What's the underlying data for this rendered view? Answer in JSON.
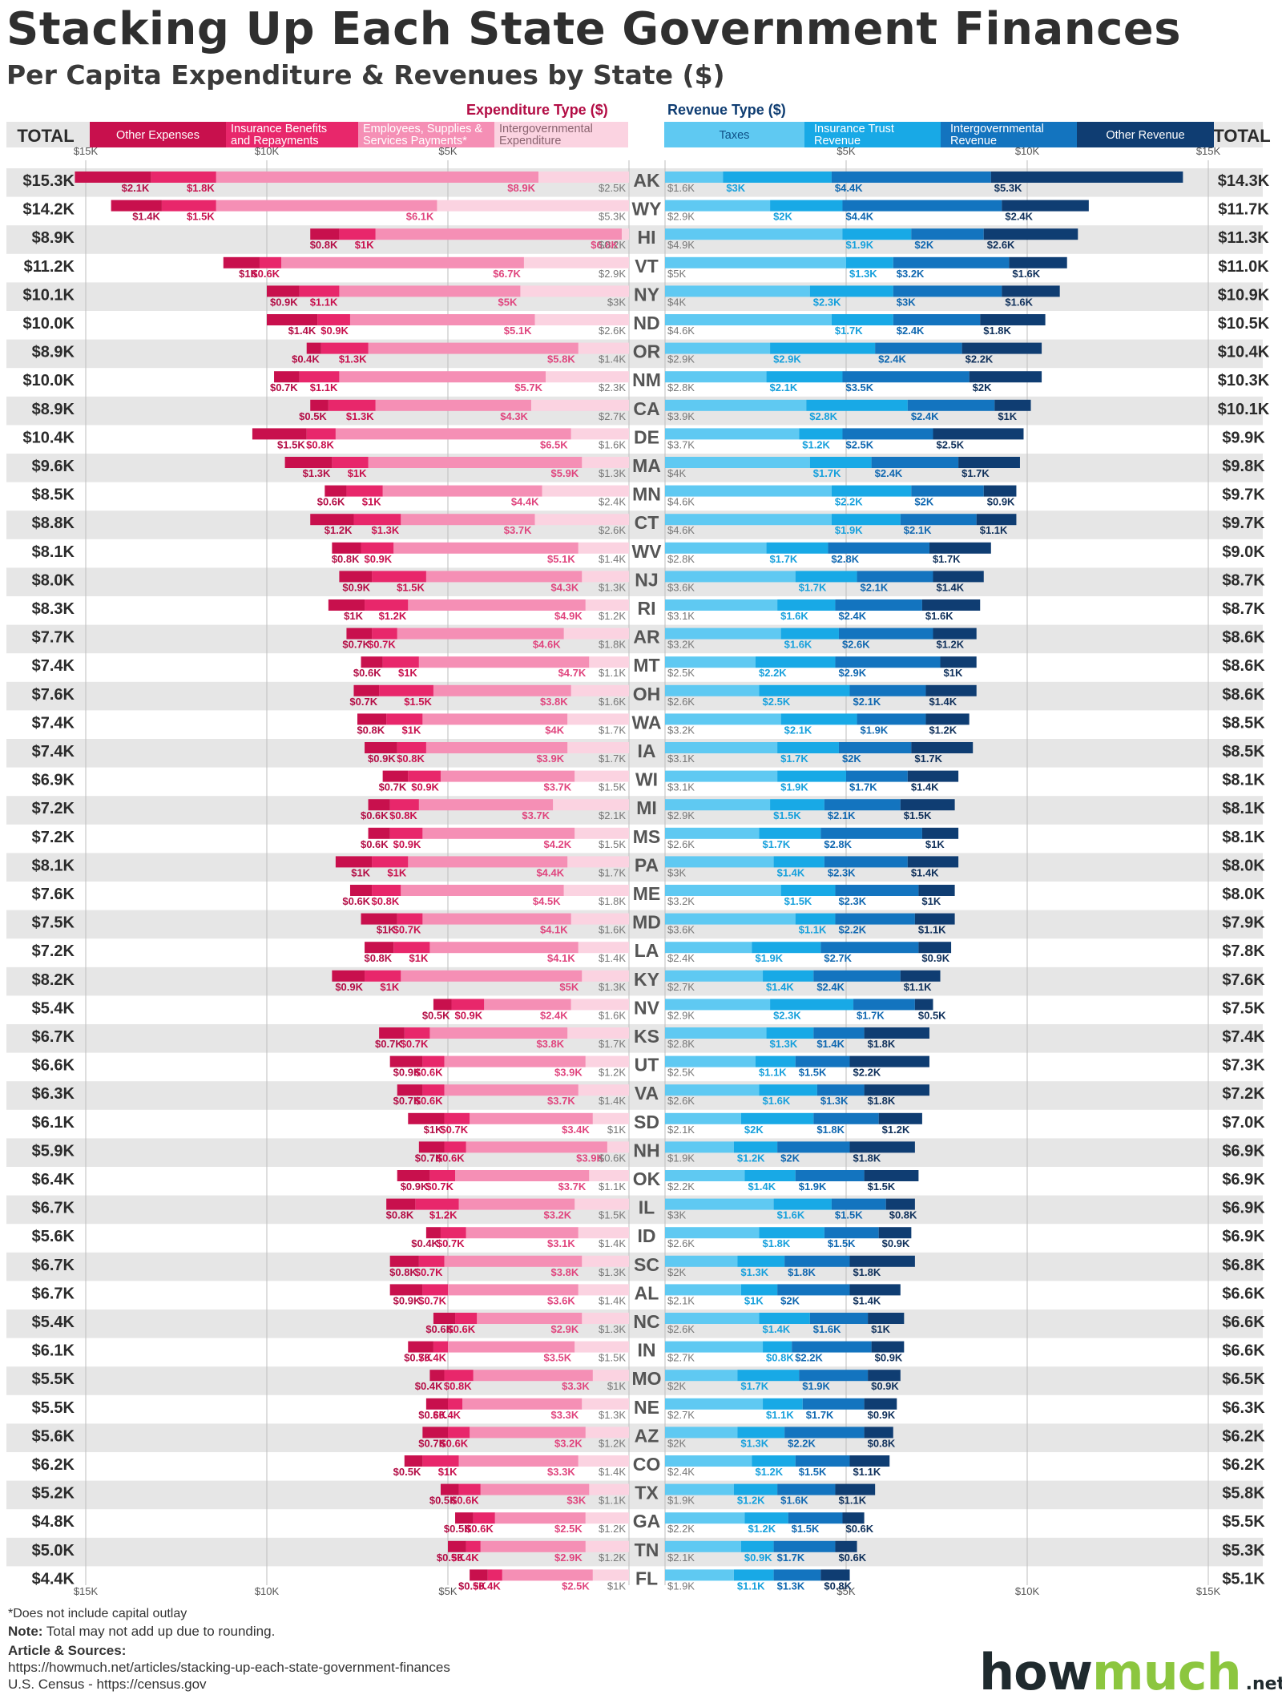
{
  "header": {
    "title": "Stacking Up Each State Government Finances",
    "subtitle": "Per Capita Expenditure & Revenues by State ($)"
  },
  "legend": {
    "total_label": "TOTAL",
    "expenditure_heading": "Expenditure Type ($)",
    "revenue_heading": "Revenue Type ($)",
    "expenditure_types": [
      {
        "name": "Other Expenses",
        "color": "#c8104d"
      },
      {
        "name": "Insurance Benefits and Repayments",
        "color": "#e8276b"
      },
      {
        "name": "Employees, Supplies & Services Payments*",
        "color": "#f58fb5"
      },
      {
        "name": "Intergovernmental Expenditure",
        "color": "#fbd3e1"
      }
    ],
    "revenue_types": [
      {
        "name": "Taxes",
        "color": "#5fc9f2"
      },
      {
        "name": "Insurance Trust Revenue",
        "color": "#18a9e6"
      },
      {
        "name": "Intergovernmental Revenue",
        "color": "#1374bf"
      },
      {
        "name": "Other Revenue",
        "color": "#0f3d72"
      }
    ]
  },
  "axis": {
    "ticks_left": [
      "$15K",
      "$10K",
      "$5K"
    ],
    "ticks_right": [
      "$5K",
      "$10K",
      "$15K"
    ]
  },
  "footer": {
    "note1": "*Does not include capital outlay",
    "note2_bold": "Note:",
    "note2": "Total may not add up due to rounding.",
    "sources_heading": "Article & Sources:",
    "source1": "https://howmuch.net/articles/stacking-up-each-state-government-finances",
    "source2": "U.S. Census - https://census.gov"
  },
  "logo": {
    "main": "how",
    "accent": "much",
    "tld": ".net"
  },
  "chart_data": {
    "type": "bar",
    "title": "Stacking Up Each State Government Finances",
    "subtitle": "Per Capita Expenditure & Revenues by State ($)",
    "unit": "USD per capita (thousands)",
    "xlim": [
      0,
      15
    ],
    "expenditure_series": [
      "Other Expenses",
      "Insurance Benefits and Repayments",
      "Employees, Supplies & Services Payments*",
      "Intergovernmental Expenditure"
    ],
    "revenue_series": [
      "Taxes",
      "Insurance Trust Revenue",
      "Intergovernmental Revenue",
      "Other Revenue"
    ],
    "states": [
      {
        "state": "AK",
        "exp_total": "$15.3K",
        "exp": [
          "$2.1K",
          "$1.8K",
          "$8.9K",
          "$2.5K"
        ],
        "rev_total": "$14.3K",
        "rev": [
          "$1.6K",
          "$3K",
          "$4.4K",
          "$5.3K"
        ]
      },
      {
        "state": "WY",
        "exp_total": "$14.2K",
        "exp": [
          "$1.4K",
          "$1.5K",
          "$6.1K",
          "$5.3K"
        ],
        "rev_total": "$11.7K",
        "rev": [
          "$2.9K",
          "$2K",
          "$4.4K",
          "$2.4K"
        ]
      },
      {
        "state": "HI",
        "exp_total": "$8.9K",
        "exp": [
          "$0.8K",
          "$1K",
          "$6.8K",
          "$0.2K"
        ],
        "rev_total": "$11.3K",
        "rev": [
          "$4.9K",
          "$1.9K",
          "$2K",
          "$2.6K"
        ]
      },
      {
        "state": "VT",
        "exp_total": "$11.2K",
        "exp": [
          "$1K",
          "$0.6K",
          "$6.7K",
          "$2.9K"
        ],
        "rev_total": "$11.0K",
        "rev": [
          "$5K",
          "$1.3K",
          "$3.2K",
          "$1.6K"
        ]
      },
      {
        "state": "NY",
        "exp_total": "$10.1K",
        "exp": [
          "$0.9K",
          "$1.1K",
          "$5K",
          "$3K"
        ],
        "rev_total": "$10.9K",
        "rev": [
          "$4K",
          "$2.3K",
          "$3K",
          "$1.6K"
        ]
      },
      {
        "state": "ND",
        "exp_total": "$10.0K",
        "exp": [
          "$1.4K",
          "$0.9K",
          "$5.1K",
          "$2.6K"
        ],
        "rev_total": "$10.5K",
        "rev": [
          "$4.6K",
          "$1.7K",
          "$2.4K",
          "$1.8K"
        ]
      },
      {
        "state": "OR",
        "exp_total": "$8.9K",
        "exp": [
          "$0.4K",
          "$1.3K",
          "$5.8K",
          "$1.4K"
        ],
        "rev_total": "$10.4K",
        "rev": [
          "$2.9K",
          "$2.9K",
          "$2.4K",
          "$2.2K"
        ]
      },
      {
        "state": "NM",
        "exp_total": "$10.0K",
        "exp": [
          "$0.7K",
          "$1.1K",
          "$5.7K",
          "$2.3K"
        ],
        "rev_total": "$10.3K",
        "rev": [
          "$2.8K",
          "$2.1K",
          "$3.5K",
          "$2K"
        ]
      },
      {
        "state": "CA",
        "exp_total": "$8.9K",
        "exp": [
          "$0.5K",
          "$1.3K",
          "$4.3K",
          "$2.7K"
        ],
        "rev_total": "$10.1K",
        "rev": [
          "$3.9K",
          "$2.8K",
          "$2.4K",
          "$1K"
        ]
      },
      {
        "state": "DE",
        "exp_total": "$10.4K",
        "exp": [
          "$1.5K",
          "$0.8K",
          "$6.5K",
          "$1.6K"
        ],
        "rev_total": "$9.9K",
        "rev": [
          "$3.7K",
          "$1.2K",
          "$2.5K",
          "$2.5K"
        ]
      },
      {
        "state": "MA",
        "exp_total": "$9.6K",
        "exp": [
          "$1.3K",
          "$1K",
          "$5.9K",
          "$1.3K"
        ],
        "rev_total": "$9.8K",
        "rev": [
          "$4K",
          "$1.7K",
          "$2.4K",
          "$1.7K"
        ]
      },
      {
        "state": "MN",
        "exp_total": "$8.5K",
        "exp": [
          "$0.6K",
          "$1K",
          "$4.4K",
          "$2.4K"
        ],
        "rev_total": "$9.7K",
        "rev": [
          "$4.6K",
          "$2.2K",
          "$2K",
          "$0.9K"
        ]
      },
      {
        "state": "CT",
        "exp_total": "$8.8K",
        "exp": [
          "$1.2K",
          "$1.3K",
          "$3.7K",
          "$2.6K"
        ],
        "rev_total": "$9.7K",
        "rev": [
          "$4.6K",
          "$1.9K",
          "$2.1K",
          "$1.1K"
        ]
      },
      {
        "state": "WV",
        "exp_total": "$8.1K",
        "exp": [
          "$0.8K",
          "$0.9K",
          "$5.1K",
          "$1.4K"
        ],
        "rev_total": "$9.0K",
        "rev": [
          "$2.8K",
          "$1.7K",
          "$2.8K",
          "$1.7K"
        ]
      },
      {
        "state": "NJ",
        "exp_total": "$8.0K",
        "exp": [
          "$0.9K",
          "$1.5K",
          "$4.3K",
          "$1.3K"
        ],
        "rev_total": "$8.7K",
        "rev": [
          "$3.6K",
          "$1.7K",
          "$2.1K",
          "$1.4K"
        ]
      },
      {
        "state": "RI",
        "exp_total": "$8.3K",
        "exp": [
          "$1K",
          "$1.2K",
          "$4.9K",
          "$1.2K"
        ],
        "rev_total": "$8.7K",
        "rev": [
          "$3.1K",
          "$1.6K",
          "$2.4K",
          "$1.6K"
        ]
      },
      {
        "state": "AR",
        "exp_total": "$7.7K",
        "exp": [
          "$0.7K",
          "$0.7K",
          "$4.6K",
          "$1.8K"
        ],
        "rev_total": "$8.6K",
        "rev": [
          "$3.2K",
          "$1.6K",
          "$2.6K",
          "$1.2K"
        ]
      },
      {
        "state": "MT",
        "exp_total": "$7.4K",
        "exp": [
          "$0.6K",
          "$1K",
          "$4.7K",
          "$1.1K"
        ],
        "rev_total": "$8.6K",
        "rev": [
          "$2.5K",
          "$2.2K",
          "$2.9K",
          "$1K"
        ]
      },
      {
        "state": "OH",
        "exp_total": "$7.6K",
        "exp": [
          "$0.7K",
          "$1.5K",
          "$3.8K",
          "$1.6K"
        ],
        "rev_total": "$8.6K",
        "rev": [
          "$2.6K",
          "$2.5K",
          "$2.1K",
          "$1.4K"
        ]
      },
      {
        "state": "WA",
        "exp_total": "$7.4K",
        "exp": [
          "$0.8K",
          "$1K",
          "$4K",
          "$1.7K"
        ],
        "rev_total": "$8.5K",
        "rev": [
          "$3.2K",
          "$2.1K",
          "$1.9K",
          "$1.2K"
        ]
      },
      {
        "state": "IA",
        "exp_total": "$7.4K",
        "exp": [
          "$0.9K",
          "$0.8K",
          "$3.9K",
          "$1.7K"
        ],
        "rev_total": "$8.5K",
        "rev": [
          "$3.1K",
          "$1.7K",
          "$2K",
          "$1.7K"
        ]
      },
      {
        "state": "WI",
        "exp_total": "$6.9K",
        "exp": [
          "$0.7K",
          "$0.9K",
          "$3.7K",
          "$1.5K"
        ],
        "rev_total": "$8.1K",
        "rev": [
          "$3.1K",
          "$1.9K",
          "$1.7K",
          "$1.4K"
        ]
      },
      {
        "state": "MI",
        "exp_total": "$7.2K",
        "exp": [
          "$0.6K",
          "$0.8K",
          "$3.7K",
          "$2.1K"
        ],
        "rev_total": "$8.1K",
        "rev": [
          "$2.9K",
          "$1.5K",
          "$2.1K",
          "$1.5K"
        ]
      },
      {
        "state": "MS",
        "exp_total": "$7.2K",
        "exp": [
          "$0.6K",
          "$0.9K",
          "$4.2K",
          "$1.5K"
        ],
        "rev_total": "$8.1K",
        "rev": [
          "$2.6K",
          "$1.7K",
          "$2.8K",
          "$1K"
        ]
      },
      {
        "state": "PA",
        "exp_total": "$8.1K",
        "exp": [
          "$1K",
          "$1K",
          "$4.4K",
          "$1.7K"
        ],
        "rev_total": "$8.0K",
        "rev": [
          "$3K",
          "$1.4K",
          "$2.3K",
          "$1.4K"
        ]
      },
      {
        "state": "ME",
        "exp_total": "$7.6K",
        "exp": [
          "$0.6K",
          "$0.8K",
          "$4.5K",
          "$1.8K"
        ],
        "rev_total": "$8.0K",
        "rev": [
          "$3.2K",
          "$1.5K",
          "$2.3K",
          "$1K"
        ]
      },
      {
        "state": "MD",
        "exp_total": "$7.5K",
        "exp": [
          "$1K",
          "$0.7K",
          "$4.1K",
          "$1.6K"
        ],
        "rev_total": "$7.9K",
        "rev": [
          "$3.6K",
          "$1.1K",
          "$2.2K",
          "$1.1K"
        ]
      },
      {
        "state": "LA",
        "exp_total": "$7.2K",
        "exp": [
          "$0.8K",
          "$1K",
          "$4.1K",
          "$1.4K"
        ],
        "rev_total": "$7.8K",
        "rev": [
          "$2.4K",
          "$1.9K",
          "$2.7K",
          "$0.9K"
        ]
      },
      {
        "state": "KY",
        "exp_total": "$8.2K",
        "exp": [
          "$0.9K",
          "$1K",
          "$5K",
          "$1.3K"
        ],
        "rev_total": "$7.6K",
        "rev": [
          "$2.7K",
          "$1.4K",
          "$2.4K",
          "$1.1K"
        ]
      },
      {
        "state": "NV",
        "exp_total": "$5.4K",
        "exp": [
          "$0.5K",
          "$0.9K",
          "$2.4K",
          "$1.6K"
        ],
        "rev_total": "$7.5K",
        "rev": [
          "$2.9K",
          "$2.3K",
          "$1.7K",
          "$0.5K"
        ]
      },
      {
        "state": "KS",
        "exp_total": "$6.7K",
        "exp": [
          "$0.7K",
          "$0.7K",
          "$3.8K",
          "$1.7K"
        ],
        "rev_total": "$7.4K",
        "rev": [
          "$2.8K",
          "$1.3K",
          "$1.4K",
          "$1.8K"
        ]
      },
      {
        "state": "UT",
        "exp_total": "$6.6K",
        "exp": [
          "$0.9K",
          "$0.6K",
          "$3.9K",
          "$1.2K"
        ],
        "rev_total": "$7.3K",
        "rev": [
          "$2.5K",
          "$1.1K",
          "$1.5K",
          "$2.2K"
        ]
      },
      {
        "state": "VA",
        "exp_total": "$6.3K",
        "exp": [
          "$0.7K",
          "$0.6K",
          "$3.7K",
          "$1.4K"
        ],
        "rev_total": "$7.2K",
        "rev": [
          "$2.6K",
          "$1.6K",
          "$1.3K",
          "$1.8K"
        ]
      },
      {
        "state": "SD",
        "exp_total": "$6.1K",
        "exp": [
          "$1K",
          "$0.7K",
          "$3.4K",
          "$1K"
        ],
        "rev_total": "$7.0K",
        "rev": [
          "$2.1K",
          "$2K",
          "$1.8K",
          "$1.2K"
        ]
      },
      {
        "state": "NH",
        "exp_total": "$5.9K",
        "exp": [
          "$0.7K",
          "$0.6K",
          "$3.9K",
          "$0.6K"
        ],
        "rev_total": "$6.9K",
        "rev": [
          "$1.9K",
          "$1.2K",
          "$2K",
          "$1.8K"
        ]
      },
      {
        "state": "OK",
        "exp_total": "$6.4K",
        "exp": [
          "$0.9K",
          "$0.7K",
          "$3.7K",
          "$1.1K"
        ],
        "rev_total": "$6.9K",
        "rev": [
          "$2.2K",
          "$1.4K",
          "$1.9K",
          "$1.5K"
        ]
      },
      {
        "state": "IL",
        "exp_total": "$6.7K",
        "exp": [
          "$0.8K",
          "$1.2K",
          "$3.2K",
          "$1.5K"
        ],
        "rev_total": "$6.9K",
        "rev": [
          "$3K",
          "$1.6K",
          "$1.5K",
          "$0.8K"
        ]
      },
      {
        "state": "ID",
        "exp_total": "$5.6K",
        "exp": [
          "$0.4K",
          "$0.7K",
          "$3.1K",
          "$1.4K"
        ],
        "rev_total": "$6.9K",
        "rev": [
          "$2.6K",
          "$1.8K",
          "$1.5K",
          "$0.9K"
        ]
      },
      {
        "state": "SC",
        "exp_total": "$6.7K",
        "exp": [
          "$0.8K",
          "$0.7K",
          "$3.8K",
          "$1.3K"
        ],
        "rev_total": "$6.8K",
        "rev": [
          "$2K",
          "$1.3K",
          "$1.8K",
          "$1.8K"
        ]
      },
      {
        "state": "AL",
        "exp_total": "$6.7K",
        "exp": [
          "$0.9K",
          "$0.7K",
          "$3.6K",
          "$1.4K"
        ],
        "rev_total": "$6.6K",
        "rev": [
          "$2.1K",
          "$1K",
          "$2K",
          "$1.4K"
        ]
      },
      {
        "state": "NC",
        "exp_total": "$5.4K",
        "exp": [
          "$0.6K",
          "$0.6K",
          "$2.9K",
          "$1.3K"
        ],
        "rev_total": "$6.6K",
        "rev": [
          "$2.6K",
          "$1.4K",
          "$1.6K",
          "$1K"
        ]
      },
      {
        "state": "IN",
        "exp_total": "$6.1K",
        "exp": [
          "$0.7K",
          "$0.4K",
          "$3.5K",
          "$1.5K"
        ],
        "rev_total": "$6.6K",
        "rev": [
          "$2.7K",
          "$0.8K",
          "$2.2K",
          "$0.9K"
        ]
      },
      {
        "state": "MO",
        "exp_total": "$5.5K",
        "exp": [
          "$0.4K",
          "$0.8K",
          "$3.3K",
          "$1K"
        ],
        "rev_total": "$6.5K",
        "rev": [
          "$2K",
          "$1.7K",
          "$1.9K",
          "$0.9K"
        ]
      },
      {
        "state": "NE",
        "exp_total": "$5.5K",
        "exp": [
          "$0.6K",
          "$0.4K",
          "$3.3K",
          "$1.3K"
        ],
        "rev_total": "$6.3K",
        "rev": [
          "$2.7K",
          "$1.1K",
          "$1.7K",
          "$0.9K"
        ]
      },
      {
        "state": "AZ",
        "exp_total": "$5.6K",
        "exp": [
          "$0.7K",
          "$0.6K",
          "$3.2K",
          "$1.2K"
        ],
        "rev_total": "$6.2K",
        "rev": [
          "$2K",
          "$1.3K",
          "$2.2K",
          "$0.8K"
        ]
      },
      {
        "state": "CO",
        "exp_total": "$6.2K",
        "exp": [
          "$0.5K",
          "$1K",
          "$3.3K",
          "$1.4K"
        ],
        "rev_total": "$6.2K",
        "rev": [
          "$2.4K",
          "$1.2K",
          "$1.5K",
          "$1.1K"
        ]
      },
      {
        "state": "TX",
        "exp_total": "$5.2K",
        "exp": [
          "$0.5K",
          "$0.6K",
          "$3K",
          "$1.1K"
        ],
        "rev_total": "$5.8K",
        "rev": [
          "$1.9K",
          "$1.2K",
          "$1.6K",
          "$1.1K"
        ]
      },
      {
        "state": "GA",
        "exp_total": "$4.8K",
        "exp": [
          "$0.5K",
          "$0.6K",
          "$2.5K",
          "$1.2K"
        ],
        "rev_total": "$5.5K",
        "rev": [
          "$2.2K",
          "$1.2K",
          "$1.5K",
          "$0.6K"
        ]
      },
      {
        "state": "TN",
        "exp_total": "$5.0K",
        "exp": [
          "$0.5K",
          "$0.4K",
          "$2.9K",
          "$1.2K"
        ],
        "rev_total": "$5.3K",
        "rev": [
          "$2.1K",
          "$0.9K",
          "$1.7K",
          "$0.6K"
        ]
      },
      {
        "state": "FL",
        "exp_total": "$4.4K",
        "exp": [
          "$0.5K",
          "$0.4K",
          "$2.5K",
          "$1K"
        ],
        "rev_total": "$5.1K",
        "rev": [
          "$1.9K",
          "$1.1K",
          "$1.3K",
          "$0.8K"
        ]
      }
    ]
  }
}
